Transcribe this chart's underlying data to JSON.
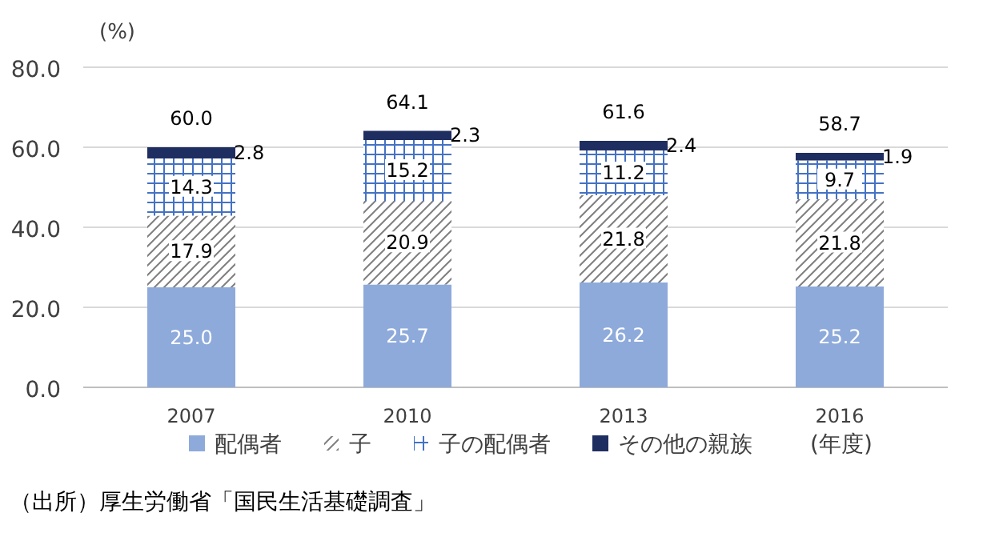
{
  "chart_data": {
    "type": "bar",
    "stacked": true,
    "ylabel": "(%)",
    "xlabel": "(年度)",
    "categories": [
      "2007",
      "2010",
      "2013",
      "2016"
    ],
    "series": [
      {
        "name": "配偶者",
        "color": "#8eaadb",
        "values": [
          25.0,
          25.7,
          26.2,
          25.2
        ],
        "value_labels": [
          "25.0",
          "25.7",
          "26.2",
          "25.2"
        ]
      },
      {
        "name": "子",
        "color": "#7f7f7f",
        "values": [
          17.9,
          20.9,
          21.8,
          21.8
        ],
        "value_labels": [
          "17.9",
          "20.9",
          "21.8",
          "21.8"
        ]
      },
      {
        "name": "子の配偶者",
        "color": "#4472c4",
        "values": [
          14.3,
          15.2,
          11.2,
          9.7
        ],
        "value_labels": [
          "14.3",
          "15.2",
          "11.2",
          "9.7"
        ]
      },
      {
        "name": "その他の親族",
        "color": "#1f2e60",
        "values": [
          2.8,
          2.3,
          2.4,
          1.9
        ],
        "value_labels": [
          "2.8",
          "2.3",
          "2.4",
          "1.9"
        ]
      }
    ],
    "totals": [
      "60.0",
      "64.1",
      "61.6",
      "58.7"
    ],
    "ylim": [
      0,
      80
    ],
    "yticks": [
      {
        "value": 0,
        "label": "0.0"
      },
      {
        "value": 20,
        "label": "20.0"
      },
      {
        "value": 40,
        "label": "40.0"
      },
      {
        "value": 60,
        "label": "60.0"
      },
      {
        "value": 80,
        "label": "80.0"
      }
    ],
    "grid": "y",
    "legend": "bottom",
    "annotations": [
      "（出所）厚生労働省「国民生活基礎調査」"
    ]
  }
}
